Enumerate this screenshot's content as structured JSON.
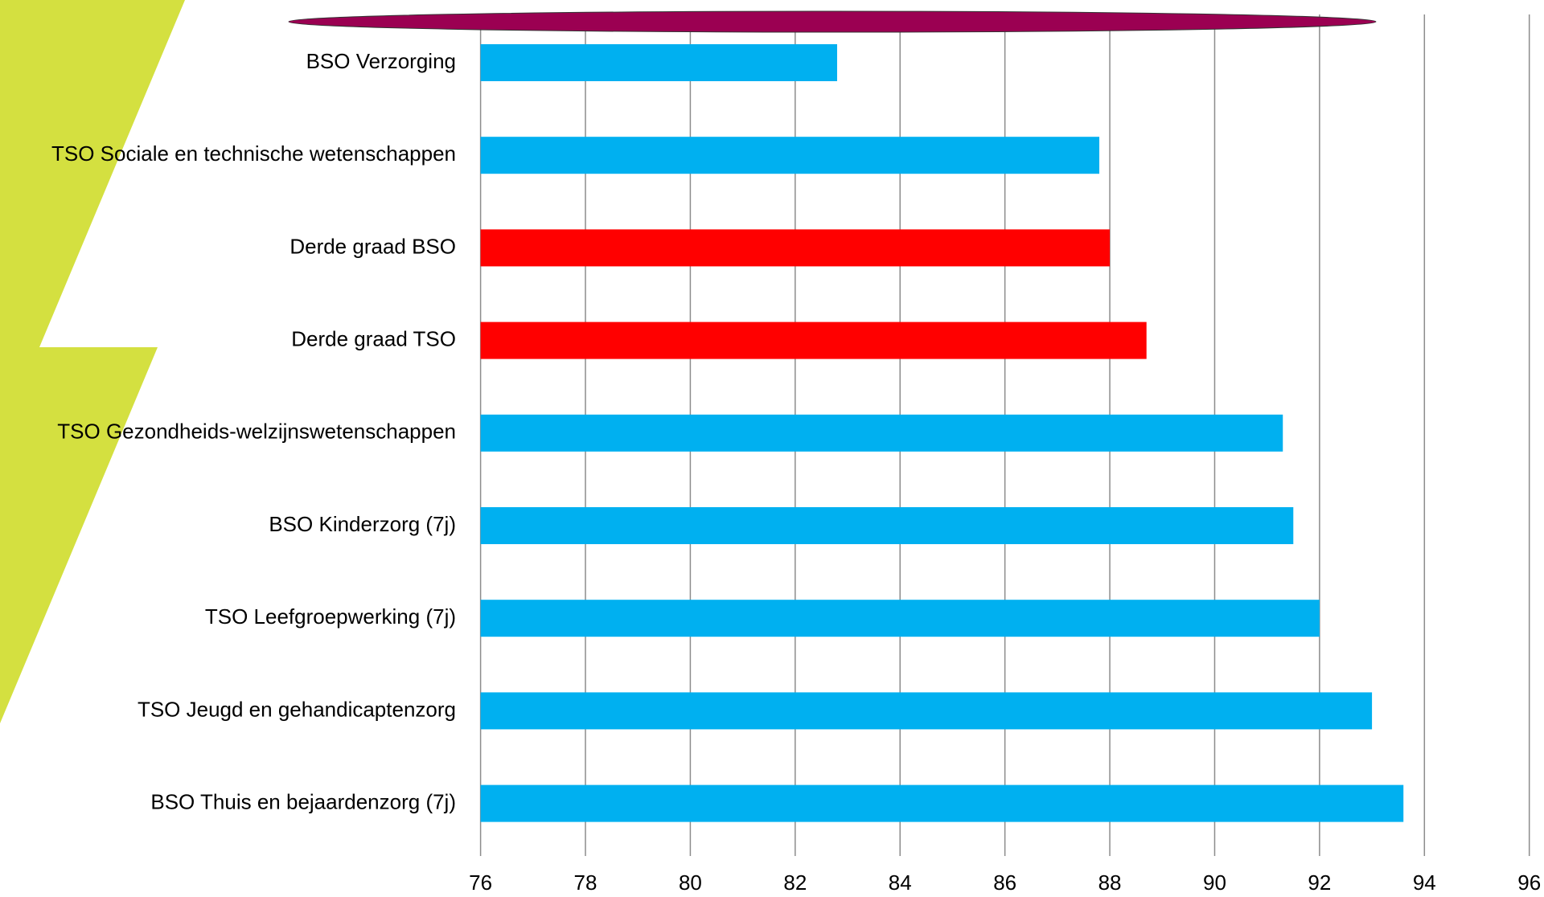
{
  "chart_data": {
    "type": "bar",
    "orientation": "horizontal",
    "categories": [
      "BSO Verzorging",
      "TSO Sociale en technische wetenschappen",
      "Derde graad BSO",
      "Derde graad TSO",
      "TSO Gezondheids-welzijnswetenschappen",
      "BSO Kinderzorg (7j)",
      "TSO Leefgroepwerking (7j)",
      "TSO Jeugd en gehandicaptenzorg",
      "BSO Thuis en bejaardenzorg (7j)"
    ],
    "values": [
      82.8,
      87.8,
      88.0,
      88.7,
      91.3,
      91.5,
      92.0,
      93.0,
      93.6
    ],
    "colors": [
      "#00b0f0",
      "#00b0f0",
      "#ff0000",
      "#ff0000",
      "#00b0f0",
      "#00b0f0",
      "#00b0f0",
      "#00b0f0",
      "#00b0f0"
    ],
    "xlim": [
      76,
      96
    ],
    "xticks": [
      76,
      78,
      80,
      82,
      84,
      86,
      88,
      90,
      92,
      94,
      96
    ],
    "grid": true
  }
}
